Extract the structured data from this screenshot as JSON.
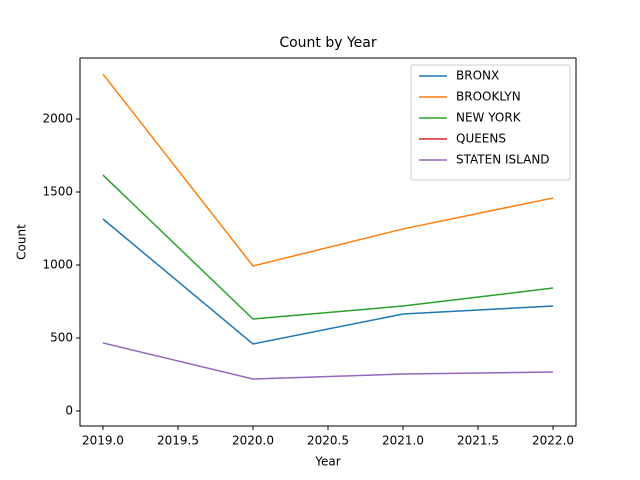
{
  "chart_data": {
    "type": "line",
    "title": "Count by Year",
    "x_label": "Year",
    "y_label": "Count",
    "x": [
      2019,
      2020,
      2021,
      2022
    ],
    "series": [
      {
        "name": "BRONX",
        "color": "#1f77b4",
        "values": [
          1315,
          459,
          664,
          719
        ]
      },
      {
        "name": "BROOKLYN",
        "color": "#ff7f0e",
        "values": [
          2308,
          993,
          1247,
          1459
        ]
      },
      {
        "name": "NEW YORK",
        "color": "#2ca02c",
        "values": [
          1616,
          630,
          719,
          842
        ]
      },
      {
        "name": "QUEENS",
        "color": "#d62728",
        "values": [
          null,
          null,
          null,
          null
        ]
      },
      {
        "name": "STATEN ISLAND",
        "color": "#9467bd",
        "values": [
          466,
          219,
          253,
          267
        ]
      }
    ],
    "xlim": [
      2018.847,
      2022.153
    ],
    "xticks": [
      {
        "value": 2019,
        "label": "2019.0"
      },
      {
        "value": 2019.5,
        "label": "2019.5"
      },
      {
        "value": 2020,
        "label": "2020.0"
      },
      {
        "value": 2020.5,
        "label": "2020.5"
      },
      {
        "value": 2021,
        "label": "2021.0"
      },
      {
        "value": 2021.5,
        "label": "2021.5"
      },
      {
        "value": 2022,
        "label": "2022.0"
      }
    ],
    "ylim": [
      -103,
      2418
    ],
    "yticks": [
      0,
      500,
      1000,
      1500,
      2000
    ],
    "legend": "upper right",
    "grid": false
  }
}
